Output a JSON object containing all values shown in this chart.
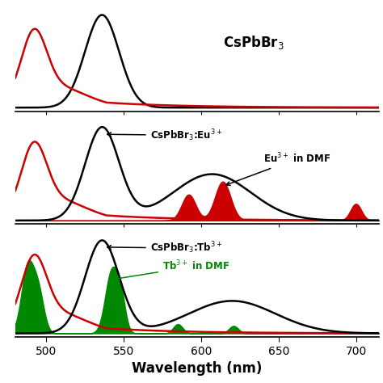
{
  "xlim": [
    480,
    715
  ],
  "xlabel": "Wavelength (nm)",
  "xlabel_fontsize": 12,
  "tick_fontsize": 10,
  "panel1_label": "CsPbBr$_3$",
  "panel2_label": "CsPbBr$_3$:Eu$^{3+}$",
  "panel3_label": "CsPbBr$_3$:Tb$^{3+}$",
  "eu_dmf_label": "Eu$^{3+}$ in DMF",
  "tb_dmf_label": "Tb$^{3+}$ in DMF",
  "bg_color": "#ffffff",
  "black_color": "#000000",
  "red_color": "#cc0000",
  "green_color": "#008800"
}
